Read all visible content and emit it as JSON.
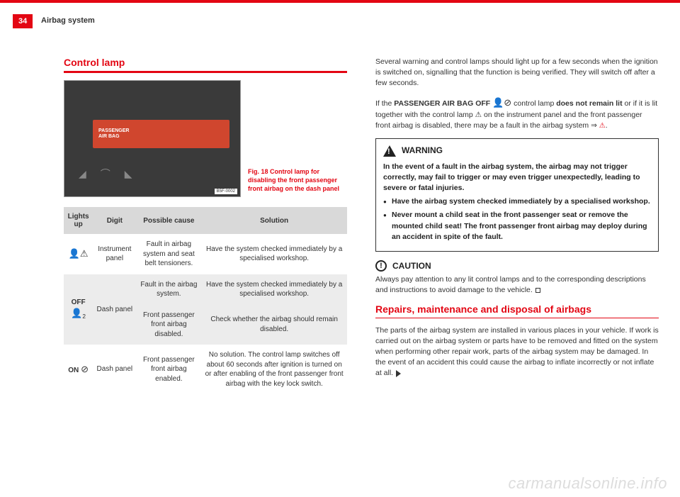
{
  "page": {
    "number": "34",
    "section": "Airbag system"
  },
  "left": {
    "heading": "Control lamp",
    "figure": {
      "panel_line1": "PASSENGER",
      "panel_line2": "AIR BAG",
      "code": "B5F-0002",
      "caption": "Fig. 18  Control lamp for disabling the front passenger front airbag on the dash panel"
    },
    "table": {
      "headers": {
        "c1": "Lights up",
        "c2": "Digit",
        "c3": "Possible cause",
        "c4": "Solution"
      },
      "r1": {
        "symbol": "⚠",
        "digit": "Instrument panel",
        "cause": "Fault in airbag system and seat belt tensioners.",
        "solution": "Have the system checked immediately by a specialised workshop."
      },
      "r2a": {
        "symbol_text": "OFF",
        "symbol_sub": "2",
        "digit": "Dash panel",
        "cause": "Fault in the airbag system.",
        "solution": "Have the system checked immediately by a specialised workshop."
      },
      "r2b": {
        "cause": "Front passenger front airbag disabled.",
        "solution": "Check whether the airbag should remain disabled."
      },
      "r3": {
        "symbol_text": "ON",
        "digit": "Dash panel",
        "cause": "Front passenger front airbag enabled.",
        "solution": "No solution. The control lamp switches off about 60 seconds after ignition is turned on or after enabling of the front passenger front airbag with the key lock switch."
      }
    }
  },
  "right": {
    "p1": "Several warning and control lamps should light up for a few seconds when the ignition is switched on, signalling that the function is being verified. They will switch off after a few seconds.",
    "p2_a": "If the ",
    "p2_b": "PASSENGER AIR BAG OFF ",
    "p2_c": " control lamp ",
    "p2_d": "does not remain lit",
    "p2_e": " or if it is lit together with the control lamp ⚠ on the instrument panel and the front passenger front airbag is disabled, there may be a fault in the airbag system ⇒ ",
    "warning": {
      "title": "WARNING",
      "intro": "In the event of a fault in the airbag system, the airbag may not trigger correctly, may fail to trigger or may even trigger unexpectedly, leading to severe or fatal injuries.",
      "b1": "Have the airbag system checked immediately by a specialised workshop.",
      "b2": "Never mount a child seat in the front passenger seat or remove the mounted child seat! The front passenger front airbag may deploy during an accident in spite of the fault."
    },
    "caution": {
      "title": "CAUTION",
      "text": "Always pay attention to any lit control lamps and to the corresponding descriptions and instructions to avoid damage to the vehicle."
    },
    "repairs": {
      "heading": "Repairs, maintenance and disposal of airbags",
      "text": "The parts of the airbag system are installed in various places in your vehicle. If work is carried out on the airbag system or parts have to be removed and fitted on the system when performing other repair work, parts of the airbag system may be damaged. In the event of an accident this could cause the airbag to inflate incorrectly or not inflate at all."
    }
  },
  "watermark": "carmanualsonline.info"
}
